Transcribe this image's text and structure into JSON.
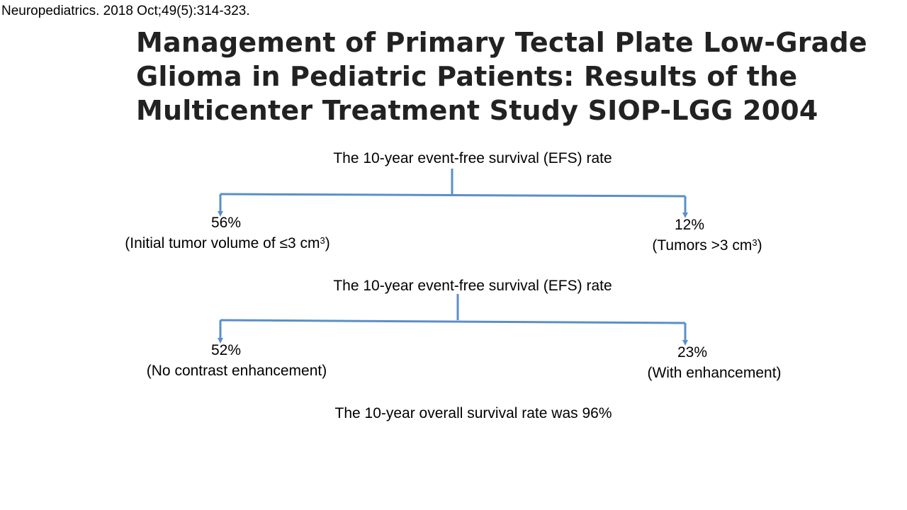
{
  "citation": "Neuropediatrics. 2018 Oct;49(5):314-323.",
  "title": {
    "line1": "Management of Primary Tectal Plate Low-Grade",
    "line2": "Glioma in Pediatric Patients: Results of the",
    "line3": "Multicenter Treatment Study SIOP-LGG 2004"
  },
  "tree1": {
    "root": "The 10-year event-free survival (EFS) rate",
    "left": {
      "value": "56%",
      "label_text": "(Initial tumor volume of ≤3 cm",
      "label_sup": "3",
      "label_close": ")"
    },
    "right": {
      "value": "12%",
      "label_text": "(Tumors >3 cm",
      "label_sup": "3",
      "label_close": ")"
    }
  },
  "tree2": {
    "root": "The 10-year event-free survival (EFS) rate",
    "left": {
      "value": "52%",
      "label": "(No contrast enhancement)"
    },
    "right": {
      "value": "23%",
      "label": "(With enhancement)"
    }
  },
  "footer": "The 10-year overall survival rate was 96%",
  "colors": {
    "connector": "#5b8fc7",
    "title": "#222222",
    "text": "#000000"
  }
}
